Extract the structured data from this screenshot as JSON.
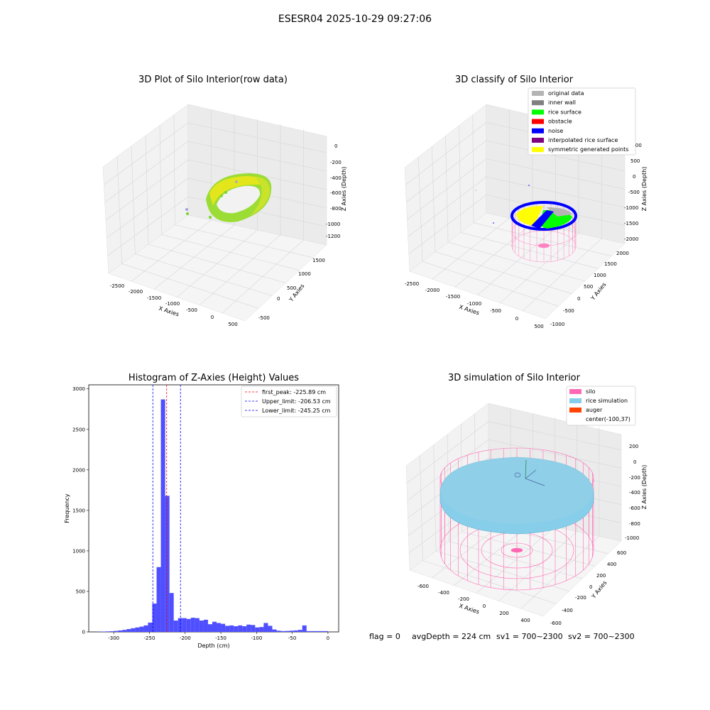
{
  "suptitle": "ESESR04 2025-10-29 09:27:06",
  "status_line": {
    "flag": "flag = 0",
    "avg_depth": "avgDepth = 224 cm",
    "sv1": "sv1 = 700~2300",
    "sv2": "sv2 = 700~2300"
  },
  "chart_data": [
    {
      "type": "scatter3d",
      "title": "3D Plot of Silo Interior(row data)",
      "xlabel": "X Axies",
      "ylabel": "Y Axies",
      "zlabel": "Z Axies (Depth)",
      "x_ticks": [
        "-2500",
        "-2000",
        "-1500",
        "-1000",
        "-500",
        "0",
        "500"
      ],
      "y_ticks": [
        "-500",
        "0",
        "500",
        "1000",
        "1500"
      ],
      "z_ticks": [
        "0",
        "-200",
        "-400",
        "-600",
        "-800",
        "-1000",
        "-1200"
      ],
      "grid": true,
      "colors": {
        "point_high": "#f5e000",
        "point_low": "#7ad62a"
      }
    },
    {
      "type": "scatter3d",
      "title": "3D classify of Silo Interior",
      "xlabel": "X Axies",
      "ylabel": "Y Axies",
      "zlabel": "Z Axies (Depth)",
      "x_ticks": [
        "-2500",
        "-2000",
        "-1500",
        "-1000",
        "-500",
        "0",
        "500"
      ],
      "y_ticks": [
        "-1000",
        "-500",
        "0",
        "500",
        "1000",
        "1500",
        "2000"
      ],
      "z_ticks": [
        "1000",
        "500",
        "0",
        "-500",
        "-1000",
        "-1500",
        "-2000"
      ],
      "legend_position": "upper-right",
      "legend": [
        {
          "label": "original data",
          "color": "#b4b4b4"
        },
        {
          "label": "inner wall",
          "color": "#808080"
        },
        {
          "label": "rice surface",
          "color": "#00ff00"
        },
        {
          "label": "obstacle",
          "color": "#ff0000"
        },
        {
          "label": "noise",
          "color": "#0000ff"
        },
        {
          "label": "interpolated rice surface",
          "color": "#800080"
        },
        {
          "label": "symmetric generated points",
          "color": "#ffff00"
        }
      ],
      "silo_color": "#ff69b4",
      "grid": true
    },
    {
      "type": "bar",
      "title": "Histogram of Z-Axies (Height) Values",
      "xlabel": "Depth (cm)",
      "ylabel": "Frequency",
      "xlim": [
        -335,
        15
      ],
      "ylim": [
        0,
        3050
      ],
      "x_ticks": [
        -300,
        -250,
        -200,
        -150,
        -100,
        -50,
        0
      ],
      "y_ticks": [
        0,
        500,
        1000,
        1500,
        2000,
        2500,
        3000
      ],
      "bar_color": "#4f4fff",
      "bin_width": 6,
      "bins_start": [
        -324,
        -318,
        -312,
        -306,
        -300,
        -294,
        -288,
        -282,
        -276,
        -270,
        -264,
        -258,
        -252,
        -246,
        -240,
        -234,
        -228,
        -222,
        -216,
        -210,
        -204,
        -198,
        -192,
        -186,
        -180,
        -174,
        -168,
        -162,
        -156,
        -150,
        -144,
        -138,
        -132,
        -126,
        -120,
        -114,
        -108,
        -102,
        -96,
        -90,
        -84,
        -78,
        -72,
        -66,
        -60,
        -54,
        -48,
        -42,
        -36,
        -30,
        -24,
        -18,
        -12,
        -6
      ],
      "values": [
        2,
        4,
        6,
        8,
        12,
        18,
        25,
        35,
        45,
        55,
        65,
        80,
        115,
        350,
        800,
        2870,
        1680,
        480,
        140,
        170,
        170,
        160,
        175,
        170,
        140,
        150,
        95,
        125,
        110,
        100,
        75,
        80,
        70,
        80,
        70,
        90,
        85,
        55,
        60,
        110,
        75,
        30,
        15,
        10,
        12,
        15,
        18,
        25,
        80,
        10,
        10,
        10,
        10,
        10
      ],
      "vlines": [
        {
          "label": "first_peak: -225.89 cm",
          "x": -225.89,
          "color": "#ff0000"
        },
        {
          "label": "Upper_limit: -206.53 cm",
          "x": -206.53,
          "color": "#0000ff"
        },
        {
          "label": "Lower_limit: -245.25 cm",
          "x": -245.25,
          "color": "#0000ff"
        }
      ],
      "legend_position": "upper-right"
    },
    {
      "type": "surface3d",
      "title": "3D simulation of Silo Interior",
      "xlabel": "X Axies",
      "ylabel": "Y Axies",
      "zlabel": "Z Axies (Depth)",
      "x_ticks": [
        "-600",
        "-400",
        "-200",
        "0",
        "200",
        "400"
      ],
      "y_ticks": [
        "-600",
        "-400",
        "-200",
        "0",
        "200",
        "400",
        "600"
      ],
      "z_ticks": [
        "200",
        "0",
        "-200",
        "-400",
        "-600",
        "-800",
        "-1000"
      ],
      "legend_position": "upper-right",
      "legend": [
        {
          "label": "silo",
          "color": "#ff69b4"
        },
        {
          "label": "rice simulation",
          "color": "#87ceeb"
        },
        {
          "label": "auger",
          "color": "#ff4500"
        },
        {
          "label": "center(-100,37)",
          "color": ""
        }
      ],
      "grid": true
    }
  ]
}
